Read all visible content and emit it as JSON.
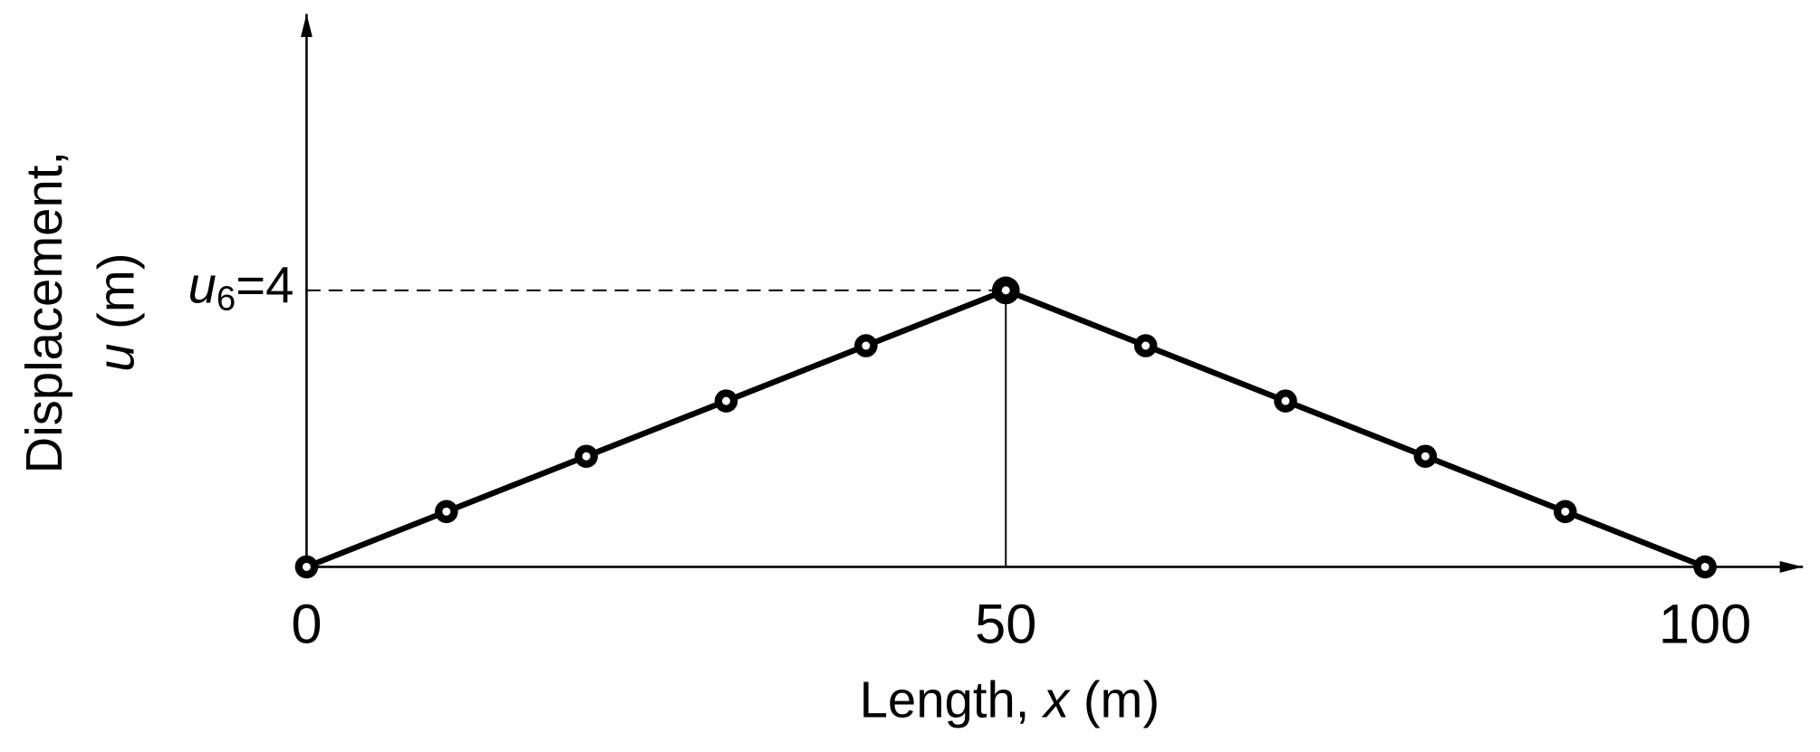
{
  "chart_data": {
    "type": "line",
    "x": [
      0,
      10,
      20,
      30,
      40,
      50,
      60,
      70,
      80,
      90,
      100
    ],
    "series": [
      {
        "color": "#000000",
        "values": [
          0,
          0.8,
          1.6,
          2.4,
          3.2,
          4,
          3.2,
          2.4,
          1.6,
          0.8,
          0
        ]
      }
    ],
    "xlim": [
      0,
      107
    ],
    "xticks": [
      0,
      50,
      100
    ],
    "ylim": [
      0,
      8
    ],
    "x_label": [
      "Length, ",
      "x",
      " (m)"
    ],
    "y_label": [
      "Displacement,",
      "u",
      " (m)"
    ],
    "annotation": [
      "u",
      "6",
      "=4"
    ]
  }
}
